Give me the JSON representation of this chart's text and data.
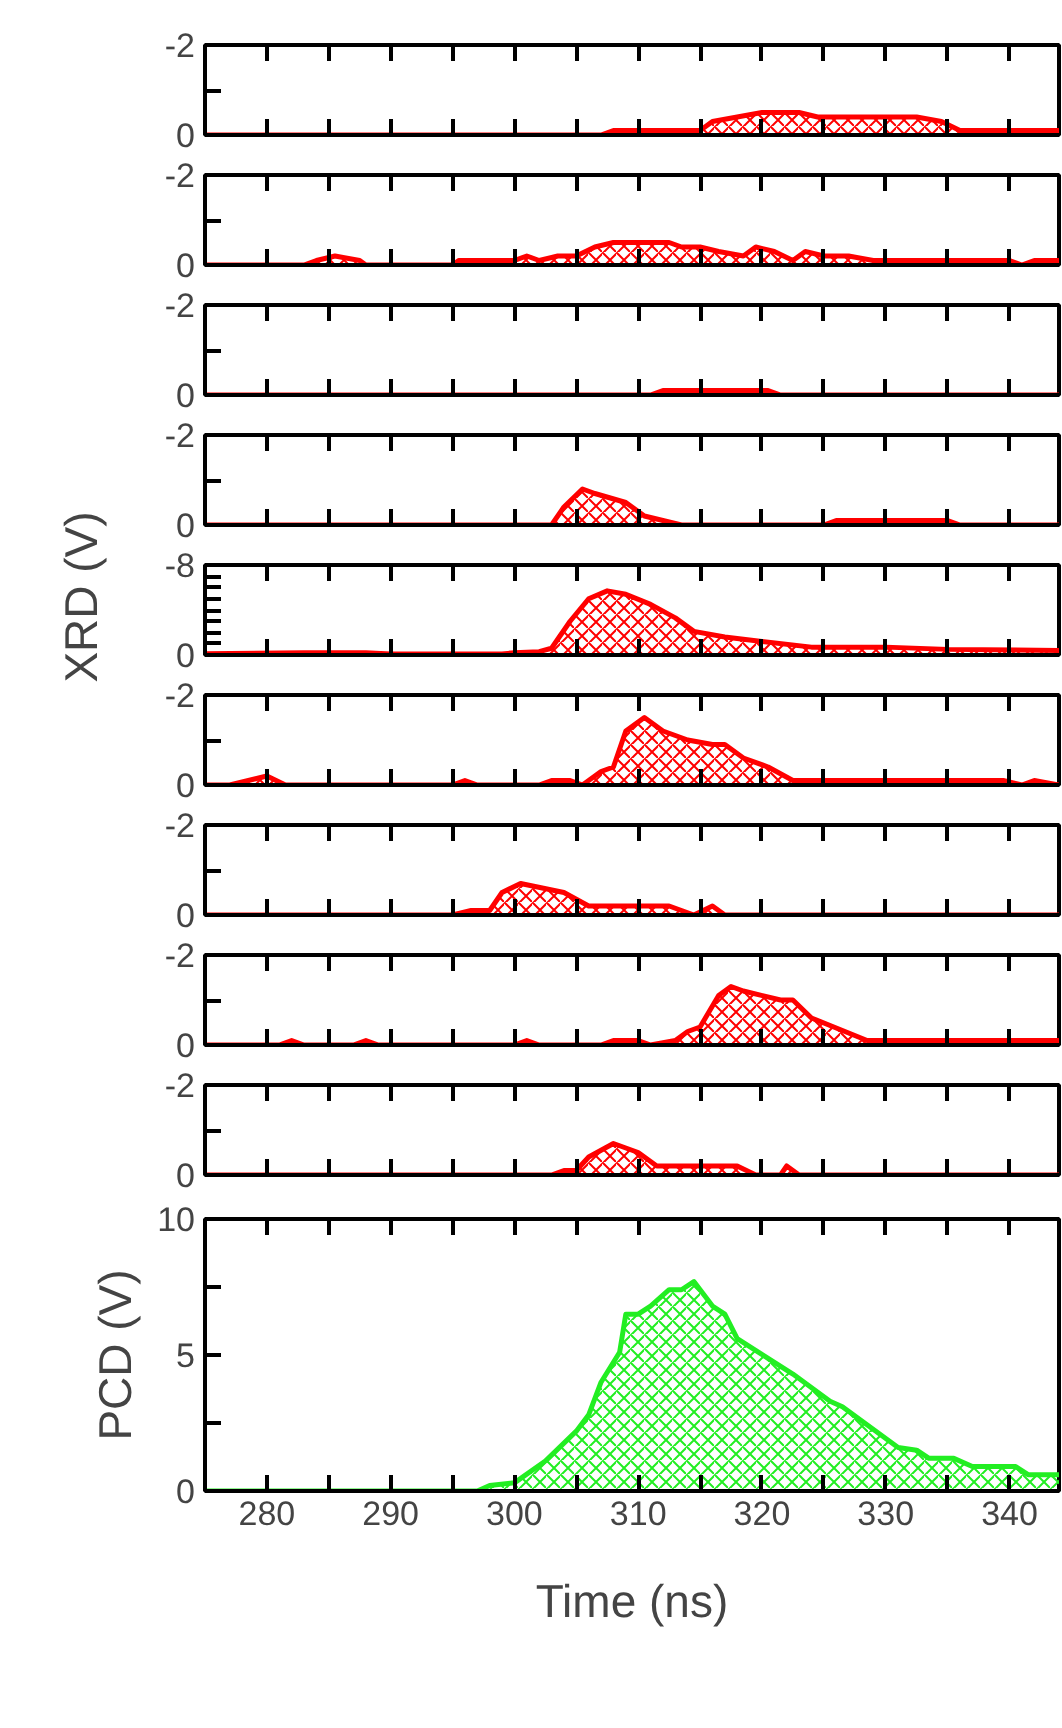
{
  "chart_data": [
    {
      "type": "area",
      "x": [
        275,
        299.5,
        307,
        308,
        315,
        316,
        318,
        320,
        323,
        324.5,
        332.5,
        334.5,
        336,
        344
      ],
      "series": [
        {
          "color": "#ff0000",
          "values": [
            0,
            0,
            0,
            -0.1,
            -0.1,
            -0.3,
            -0.4,
            -0.5,
            -0.5,
            -0.4,
            -0.4,
            -0.3,
            -0.1,
            -0.1
          ]
        }
      ],
      "xlim": [
        275,
        344
      ],
      "xticks": [
        {
          "value": 280,
          "label": null
        },
        {
          "value": 285,
          "label": null
        },
        {
          "value": 290,
          "label": null
        },
        {
          "value": 295,
          "label": null
        },
        {
          "value": 300,
          "label": null
        },
        {
          "value": 305,
          "label": null
        },
        {
          "value": 310,
          "label": null
        },
        {
          "value": 315,
          "label": null
        },
        {
          "value": 320,
          "label": null
        },
        {
          "value": 325,
          "label": null
        },
        {
          "value": 330,
          "label": null
        },
        {
          "value": 335,
          "label": null
        },
        {
          "value": 340,
          "label": null
        }
      ],
      "ylim": [
        0,
        -2
      ],
      "yticks": [
        -2,
        {
          "value": -1,
          "label": null
        },
        0
      ],
      "tick_labels": "y"
    },
    {
      "type": "area",
      "x": [
        275,
        283,
        284,
        285.5,
        287.5,
        288,
        295,
        295.5,
        300,
        301,
        302,
        303.5,
        305,
        306.5,
        308,
        310,
        312.5,
        313.5,
        315,
        316.5,
        318.5,
        319.5,
        321,
        322.5,
        323.5,
        325,
        327,
        329,
        340,
        341,
        342,
        344
      ],
      "series": [
        {
          "color": "#ff0000",
          "values": [
            0,
            0,
            -0.1,
            -0.2,
            -0.1,
            0,
            0,
            -0.1,
            -0.1,
            -0.2,
            -0.1,
            -0.2,
            -0.2,
            -0.4,
            -0.5,
            -0.5,
            -0.5,
            -0.4,
            -0.4,
            -0.3,
            -0.2,
            -0.4,
            -0.3,
            -0.1,
            -0.3,
            -0.2,
            -0.2,
            -0.1,
            -0.1,
            0,
            -0.1,
            -0.1
          ]
        }
      ],
      "xlim": [
        275,
        344
      ],
      "xticks": [
        {
          "value": 280,
          "label": null
        },
        {
          "value": 285,
          "label": null
        },
        {
          "value": 290,
          "label": null
        },
        {
          "value": 295,
          "label": null
        },
        {
          "value": 300,
          "label": null
        },
        {
          "value": 305,
          "label": null
        },
        {
          "value": 310,
          "label": null
        },
        {
          "value": 315,
          "label": null
        },
        {
          "value": 320,
          "label": null
        },
        {
          "value": 325,
          "label": null
        },
        {
          "value": 330,
          "label": null
        },
        {
          "value": 335,
          "label": null
        },
        {
          "value": 340,
          "label": null
        }
      ],
      "ylim": [
        0,
        -2
      ],
      "yticks": [
        -2,
        {
          "value": -1,
          "label": null
        },
        0
      ],
      "tick_labels": "y"
    },
    {
      "type": "area",
      "x": [
        275,
        311,
        312,
        314,
        316.5,
        318,
        320.5,
        321.5,
        344
      ],
      "series": [
        {
          "color": "#ff0000",
          "values": [
            0,
            0,
            -0.1,
            -0.1,
            -0.1,
            -0.1,
            -0.1,
            0,
            0
          ]
        }
      ],
      "xlim": [
        275,
        344
      ],
      "xticks": [
        {
          "value": 280,
          "label": null
        },
        {
          "value": 285,
          "label": null
        },
        {
          "value": 290,
          "label": null
        },
        {
          "value": 295,
          "label": null
        },
        {
          "value": 300,
          "label": null
        },
        {
          "value": 305,
          "label": null
        },
        {
          "value": 310,
          "label": null
        },
        {
          "value": 315,
          "label": null
        },
        {
          "value": 320,
          "label": null
        },
        {
          "value": 325,
          "label": null
        },
        {
          "value": 330,
          "label": null
        },
        {
          "value": 335,
          "label": null
        },
        {
          "value": 340,
          "label": null
        }
      ],
      "ylim": [
        0,
        -2
      ],
      "yticks": [
        -2,
        {
          "value": -1,
          "label": null
        },
        0
      ],
      "tick_labels": "y"
    },
    {
      "type": "area",
      "x": [
        275,
        303,
        304,
        305.5,
        306.5,
        309,
        310.5,
        312,
        313.5,
        325,
        326,
        331,
        332,
        335,
        336,
        344
      ],
      "series": [
        {
          "color": "#ff0000",
          "values": [
            0,
            0,
            -0.4,
            -0.8,
            -0.7,
            -0.5,
            -0.2,
            -0.1,
            0,
            0,
            -0.1,
            -0.1,
            -0.1,
            -0.1,
            0,
            0
          ]
        }
      ],
      "xlim": [
        275,
        344
      ],
      "xticks": [
        {
          "value": 280,
          "label": null
        },
        {
          "value": 285,
          "label": null
        },
        {
          "value": 290,
          "label": null
        },
        {
          "value": 295,
          "label": null
        },
        {
          "value": 300,
          "label": null
        },
        {
          "value": 305,
          "label": null
        },
        {
          "value": 310,
          "label": null
        },
        {
          "value": 315,
          "label": null
        },
        {
          "value": 320,
          "label": null
        },
        {
          "value": 325,
          "label": null
        },
        {
          "value": 330,
          "label": null
        },
        {
          "value": 335,
          "label": null
        },
        {
          "value": 340,
          "label": null
        }
      ],
      "ylim": [
        0,
        -2
      ],
      "yticks": [
        -2,
        {
          "value": -1,
          "label": null
        },
        0
      ],
      "tick_labels": "y"
    },
    {
      "type": "area",
      "ylabel": "XRD (V)",
      "x": [
        275,
        283,
        288,
        290,
        299,
        300,
        302,
        303,
        304.5,
        306,
        307.5,
        309,
        311,
        313,
        314.5,
        317,
        320,
        324,
        330,
        335,
        344
      ],
      "series": [
        {
          "color": "#ff0000",
          "values": [
            -0.1,
            -0.2,
            -0.2,
            -0.1,
            -0.1,
            -0.2,
            -0.3,
            -0.6,
            -3,
            -5,
            -5.7,
            -5.4,
            -4.5,
            -3.3,
            -2.1,
            -1.6,
            -1.2,
            -0.7,
            -0.7,
            -0.5,
            -0.4
          ]
        }
      ],
      "xlim": [
        275,
        344
      ],
      "xticks": [
        {
          "value": 280,
          "label": null
        },
        {
          "value": 285,
          "label": null
        },
        {
          "value": 290,
          "label": null
        },
        {
          "value": 295,
          "label": null
        },
        {
          "value": 300,
          "label": null
        },
        {
          "value": 305,
          "label": null
        },
        {
          "value": 310,
          "label": null
        },
        {
          "value": 315,
          "label": null
        },
        {
          "value": 320,
          "label": null
        },
        {
          "value": 325,
          "label": null
        },
        {
          "value": 330,
          "label": null
        },
        {
          "value": 335,
          "label": null
        },
        {
          "value": 340,
          "label": null
        }
      ],
      "ylim": [
        0,
        -8
      ],
      "yticks": [
        -8,
        {
          "value": -7,
          "label": null
        },
        {
          "value": -6,
          "label": null
        },
        {
          "value": -5,
          "label": null
        },
        {
          "value": -4,
          "label": null
        },
        {
          "value": -3,
          "label": null
        },
        {
          "value": -2,
          "label": null
        },
        {
          "value": -1,
          "label": null
        },
        0
      ],
      "tick_labels": "y"
    },
    {
      "type": "area",
      "x": [
        275,
        277,
        280,
        281.5,
        295,
        296,
        297,
        302,
        303,
        304.5,
        305.5,
        306,
        307,
        308,
        309,
        310.5,
        312,
        314,
        316,
        317,
        318.5,
        320.5,
        322.5,
        339.5,
        341,
        342,
        344
      ],
      "series": [
        {
          "color": "#ff0000",
          "values": [
            0,
            0,
            -0.2,
            0,
            0,
            -0.1,
            0,
            0,
            -0.1,
            -0.1,
            0,
            -0.1,
            -0.3,
            -0.4,
            -1.2,
            -1.5,
            -1.2,
            -1,
            -0.9,
            -0.9,
            -0.6,
            -0.4,
            -0.1,
            -0.1,
            0,
            -0.1,
            0
          ]
        }
      ],
      "xlim": [
        275,
        344
      ],
      "xticks": [
        {
          "value": 280,
          "label": null
        },
        {
          "value": 285,
          "label": null
        },
        {
          "value": 290,
          "label": null
        },
        {
          "value": 295,
          "label": null
        },
        {
          "value": 300,
          "label": null
        },
        {
          "value": 305,
          "label": null
        },
        {
          "value": 310,
          "label": null
        },
        {
          "value": 315,
          "label": null
        },
        {
          "value": 320,
          "label": null
        },
        {
          "value": 325,
          "label": null
        },
        {
          "value": 330,
          "label": null
        },
        {
          "value": 335,
          "label": null
        },
        {
          "value": 340,
          "label": null
        }
      ],
      "ylim": [
        0,
        -2
      ],
      "yticks": [
        -2,
        {
          "value": -1,
          "label": null
        },
        0
      ],
      "tick_labels": "y"
    },
    {
      "type": "area",
      "x": [
        275,
        295,
        296.5,
        298,
        299,
        300.5,
        304,
        306,
        310,
        312.5,
        314.5,
        316,
        317,
        344
      ],
      "series": [
        {
          "color": "#ff0000",
          "values": [
            0,
            0,
            -0.1,
            -0.1,
            -0.5,
            -0.7,
            -0.5,
            -0.2,
            -0.2,
            -0.2,
            0,
            -0.2,
            0,
            0
          ]
        }
      ],
      "xlim": [
        275,
        344
      ],
      "xticks": [
        {
          "value": 280,
          "label": null
        },
        {
          "value": 285,
          "label": null
        },
        {
          "value": 290,
          "label": null
        },
        {
          "value": 295,
          "label": null
        },
        {
          "value": 300,
          "label": null
        },
        {
          "value": 305,
          "label": null
        },
        {
          "value": 310,
          "label": null
        },
        {
          "value": 315,
          "label": null
        },
        {
          "value": 320,
          "label": null
        },
        {
          "value": 325,
          "label": null
        },
        {
          "value": 330,
          "label": null
        },
        {
          "value": 335,
          "label": null
        },
        {
          "value": 340,
          "label": null
        }
      ],
      "ylim": [
        0,
        -2
      ],
      "yticks": [
        -2,
        {
          "value": -1,
          "label": null
        },
        0
      ],
      "tick_labels": "y"
    },
    {
      "type": "area",
      "x": [
        275,
        281,
        282,
        283,
        287,
        288,
        289,
        300,
        301,
        302,
        307,
        308,
        310,
        311,
        313,
        314,
        315,
        316.5,
        317.5,
        318.5,
        321.5,
        322.5,
        324,
        328.5,
        344
      ],
      "series": [
        {
          "color": "#ff0000",
          "values": [
            0,
            0,
            -0.1,
            0,
            0,
            -0.1,
            0,
            0,
            -0.1,
            0,
            0,
            -0.1,
            -0.1,
            0,
            -0.1,
            -0.3,
            -0.4,
            -1.1,
            -1.3,
            -1.2,
            -1,
            -1,
            -0.6,
            -0.1,
            -0.1
          ]
        }
      ],
      "xlim": [
        275,
        344
      ],
      "xticks": [
        {
          "value": 280,
          "label": null
        },
        {
          "value": 285,
          "label": null
        },
        {
          "value": 290,
          "label": null
        },
        {
          "value": 295,
          "label": null
        },
        {
          "value": 300,
          "label": null
        },
        {
          "value": 305,
          "label": null
        },
        {
          "value": 310,
          "label": null
        },
        {
          "value": 315,
          "label": null
        },
        {
          "value": 320,
          "label": null
        },
        {
          "value": 325,
          "label": null
        },
        {
          "value": 330,
          "label": null
        },
        {
          "value": 335,
          "label": null
        },
        {
          "value": 340,
          "label": null
        }
      ],
      "ylim": [
        0,
        -2
      ],
      "yticks": [
        -2,
        {
          "value": -1,
          "label": null
        },
        0
      ],
      "tick_labels": "y"
    },
    {
      "type": "area",
      "x": [
        275,
        303,
        304,
        305,
        306,
        308,
        310,
        311.5,
        317,
        318,
        319.5,
        321.5,
        322,
        323,
        344
      ],
      "series": [
        {
          "color": "#ff0000",
          "values": [
            0,
            0,
            -0.1,
            -0.1,
            -0.4,
            -0.7,
            -0.5,
            -0.2,
            -0.2,
            -0.2,
            0,
            0,
            -0.2,
            0,
            0
          ]
        }
      ],
      "xlim": [
        275,
        344
      ],
      "xticks": [
        {
          "value": 280,
          "label": null
        },
        {
          "value": 285,
          "label": null
        },
        {
          "value": 290,
          "label": null
        },
        {
          "value": 295,
          "label": null
        },
        {
          "value": 300,
          "label": null
        },
        {
          "value": 305,
          "label": null
        },
        {
          "value": 310,
          "label": null
        },
        {
          "value": 315,
          "label": null
        },
        {
          "value": 320,
          "label": null
        },
        {
          "value": 325,
          "label": null
        },
        {
          "value": 330,
          "label": null
        },
        {
          "value": 335,
          "label": null
        },
        {
          "value": 340,
          "label": null
        }
      ],
      "ylim": [
        0,
        -2
      ],
      "yticks": [
        -2,
        {
          "value": -1,
          "label": null
        },
        0
      ],
      "tick_labels": "y"
    },
    {
      "type": "area",
      "xlabel": "Time (ns)",
      "ylabel": "PCD (V)",
      "x": [
        275,
        297,
        298,
        300,
        302.5,
        305,
        306,
        307,
        308.5,
        309,
        310,
        311,
        312.5,
        313.5,
        314.5,
        316,
        317,
        318,
        322.5,
        325.5,
        326.5,
        331,
        332.5,
        333.5,
        335.5,
        337,
        340.5,
        341.5,
        344
      ],
      "series": [
        {
          "color": "#22ee22",
          "values": [
            0,
            0,
            0.2,
            0.3,
            1.1,
            2.2,
            2.8,
            4,
            5.1,
            6.5,
            6.5,
            6.8,
            7.4,
            7.4,
            7.7,
            6.8,
            6.5,
            5.6,
            4.3,
            3.3,
            3.1,
            1.6,
            1.5,
            1.2,
            1.2,
            0.9,
            0.9,
            0.6,
            0.6
          ]
        }
      ],
      "xlim": [
        275,
        344
      ],
      "xticks": [
        280,
        {
          "value": 285,
          "label": null
        },
        290,
        {
          "value": 295,
          "label": null
        },
        300,
        {
          "value": 305,
          "label": null
        },
        310,
        {
          "value": 315,
          "label": null
        },
        320,
        {
          "value": 325,
          "label": null
        },
        330,
        {
          "value": 335,
          "label": null
        },
        340
      ],
      "ylim": [
        0,
        10
      ],
      "yticks": [
        0,
        {
          "value": 2.5,
          "label": null
        },
        5,
        {
          "value": 7.5,
          "label": null
        },
        10
      ]
    }
  ]
}
